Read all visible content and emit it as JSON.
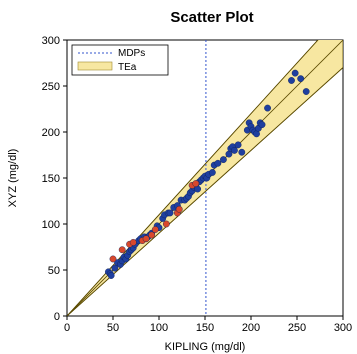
{
  "chart_data": {
    "type": "scatter",
    "title": "Scatter Plot",
    "xlabel": "KIPLING (mg/dl)",
    "ylabel": "XYZ (mg/dl)",
    "xlim": [
      0,
      300
    ],
    "ylim": [
      0,
      300
    ],
    "xticks": [
      "0",
      "50",
      "100",
      "150",
      "200",
      "250",
      "300"
    ],
    "yticks": [
      "0",
      "50",
      "100",
      "150",
      "200",
      "250",
      "300"
    ],
    "grid": false,
    "legend_position": "top-left",
    "legend": [
      {
        "label": "MDPs",
        "style": "dotted-line",
        "color": "#3355cc"
      },
      {
        "label": "TEa",
        "style": "filled-box",
        "color": "#f7e7a1"
      }
    ],
    "mdp_x": 151,
    "tea_band": {
      "lower_slope": 0.9,
      "upper_slope": 1.1
    },
    "identity_line": true,
    "colors": {
      "point_blue": "#1f3f9f",
      "point_red": "#d9482b",
      "band": "#f7e7a1",
      "band_edge": "#5a4a00",
      "mdp_line": "#3355cc"
    },
    "series": [
      {
        "color": "#1f3f9f",
        "points": [
          [
            45,
            48
          ],
          [
            47,
            46
          ],
          [
            48,
            44
          ],
          [
            52,
            52
          ],
          [
            55,
            58
          ],
          [
            58,
            56
          ],
          [
            60,
            60
          ],
          [
            62,
            64
          ],
          [
            64,
            62
          ],
          [
            66,
            66
          ],
          [
            68,
            70
          ],
          [
            70,
            72
          ],
          [
            72,
            74
          ],
          [
            74,
            78
          ],
          [
            78,
            82
          ],
          [
            80,
            84
          ],
          [
            84,
            86
          ],
          [
            86,
            84
          ],
          [
            88,
            86
          ],
          [
            90,
            88
          ],
          [
            92,
            90
          ],
          [
            98,
            98
          ],
          [
            100,
            96
          ],
          [
            104,
            106
          ],
          [
            106,
            110
          ],
          [
            110,
            112
          ],
          [
            112,
            112
          ],
          [
            116,
            118
          ],
          [
            120,
            120
          ],
          [
            124,
            126
          ],
          [
            128,
            126
          ],
          [
            130,
            128
          ],
          [
            132,
            130
          ],
          [
            134,
            134
          ],
          [
            136,
            136
          ],
          [
            138,
            140
          ],
          [
            140,
            142
          ],
          [
            142,
            138
          ],
          [
            144,
            146
          ],
          [
            146,
            148
          ],
          [
            148,
            150
          ],
          [
            150,
            152
          ],
          [
            152,
            150
          ],
          [
            154,
            154
          ],
          [
            158,
            156
          ],
          [
            160,
            164
          ],
          [
            164,
            166
          ],
          [
            170,
            170
          ],
          [
            176,
            176
          ],
          [
            178,
            182
          ],
          [
            180,
            184
          ],
          [
            182,
            180
          ],
          [
            186,
            186
          ],
          [
            190,
            178
          ],
          [
            196,
            202
          ],
          [
            198,
            210
          ],
          [
            200,
            206
          ],
          [
            202,
            202
          ],
          [
            204,
            200
          ],
          [
            206,
            198
          ],
          [
            208,
            204
          ],
          [
            210,
            210
          ],
          [
            212,
            208
          ],
          [
            218,
            226
          ],
          [
            244,
            256
          ],
          [
            248,
            264
          ],
          [
            254,
            258
          ],
          [
            260,
            244
          ]
        ]
      },
      {
        "color": "#d9482b",
        "points": [
          [
            50,
            62
          ],
          [
            60,
            72
          ],
          [
            68,
            78
          ],
          [
            72,
            80
          ],
          [
            82,
            82
          ],
          [
            86,
            84
          ],
          [
            92,
            88
          ],
          [
            96,
            94
          ],
          [
            108,
            100
          ],
          [
            120,
            112
          ],
          [
            122,
            116
          ],
          [
            136,
            142
          ],
          [
            140,
            144
          ]
        ]
      }
    ]
  }
}
